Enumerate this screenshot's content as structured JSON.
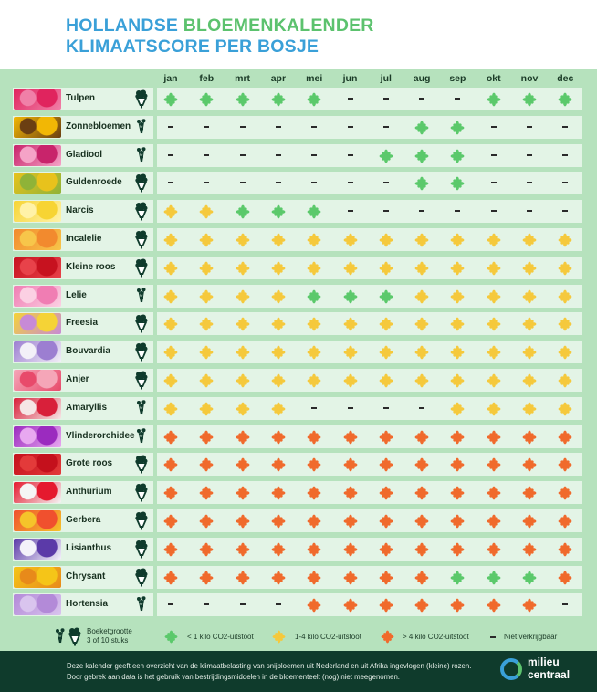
{
  "title": {
    "line1_a": "HOLLANDSE ",
    "line1_b": "BLOEMENKALENDER",
    "line2": "KLIMAATSCORE PER BOSJE"
  },
  "months": [
    "jan",
    "feb",
    "mrt",
    "apr",
    "mei",
    "jun",
    "jul",
    "aug",
    "sep",
    "okt",
    "nov",
    "dec"
  ],
  "colors": {
    "green": "#5bc96b",
    "yellow": "#f5c93c",
    "orange": "#f06a2c",
    "background": "#b6e2bd",
    "cell": "#e3f4e6",
    "footer": "#0f3b2c"
  },
  "flowers": [
    {
      "name": "Tulpen",
      "size": "large",
      "img": [
        "#e0245e",
        "#f080a8"
      ],
      "scores": [
        "g",
        "g",
        "g",
        "g",
        "g",
        "-",
        "-",
        "-",
        "-",
        "g",
        "g",
        "g"
      ]
    },
    {
      "name": "Zonnebloemen",
      "size": "small",
      "img": [
        "#f2b705",
        "#6b3f12"
      ],
      "scores": [
        "-",
        "-",
        "-",
        "-",
        "-",
        "-",
        "-",
        "g",
        "g",
        "-",
        "-",
        "-"
      ]
    },
    {
      "name": "Gladiool",
      "size": "small",
      "img": [
        "#c8246b",
        "#f5a3c7"
      ],
      "scores": [
        "-",
        "-",
        "-",
        "-",
        "-",
        "-",
        "g",
        "g",
        "g",
        "-",
        "-",
        "-"
      ]
    },
    {
      "name": "Guldenroede",
      "size": "large",
      "img": [
        "#e8c21c",
        "#8fb338"
      ],
      "scores": [
        "-",
        "-",
        "-",
        "-",
        "-",
        "-",
        "-",
        "g",
        "g",
        "-",
        "-",
        "-"
      ]
    },
    {
      "name": "Narcis",
      "size": "large",
      "img": [
        "#f7d433",
        "#fff2a8"
      ],
      "scores": [
        "y",
        "y",
        "g",
        "g",
        "g",
        "-",
        "-",
        "-",
        "-",
        "-",
        "-",
        "-"
      ]
    },
    {
      "name": "Incalelie",
      "size": "large",
      "img": [
        "#f28a2e",
        "#f7c64a"
      ],
      "scores": [
        "y",
        "y",
        "y",
        "y",
        "y",
        "y",
        "y",
        "y",
        "y",
        "y",
        "y",
        "y"
      ]
    },
    {
      "name": "Kleine roos",
      "size": "large",
      "img": [
        "#c7121f",
        "#e8424a"
      ],
      "scores": [
        "y",
        "y",
        "y",
        "y",
        "y",
        "y",
        "y",
        "y",
        "y",
        "y",
        "y",
        "y"
      ]
    },
    {
      "name": "Lelie",
      "size": "small",
      "img": [
        "#f07db3",
        "#fbd0e3"
      ],
      "scores": [
        "y",
        "y",
        "y",
        "y",
        "g",
        "g",
        "g",
        "y",
        "y",
        "y",
        "y",
        "y"
      ]
    },
    {
      "name": "Freesia",
      "size": "large",
      "img": [
        "#f5d336",
        "#c78ad6"
      ],
      "scores": [
        "y",
        "y",
        "y",
        "y",
        "y",
        "y",
        "y",
        "y",
        "y",
        "y",
        "y",
        "y"
      ]
    },
    {
      "name": "Bouvardia",
      "size": "large",
      "img": [
        "#9c7ed1",
        "#f3f0f8"
      ],
      "scores": [
        "y",
        "y",
        "y",
        "y",
        "y",
        "y",
        "y",
        "y",
        "y",
        "y",
        "y",
        "y"
      ]
    },
    {
      "name": "Anjer",
      "size": "large",
      "img": [
        "#f5a6b8",
        "#e84a6b"
      ],
      "scores": [
        "y",
        "y",
        "y",
        "y",
        "y",
        "y",
        "y",
        "y",
        "y",
        "y",
        "y",
        "y"
      ]
    },
    {
      "name": "Amaryllis",
      "size": "small",
      "img": [
        "#d8203a",
        "#f5e6e6"
      ],
      "scores": [
        "y",
        "y",
        "y",
        "y",
        "-",
        "-",
        "-",
        "-",
        "y",
        "y",
        "y",
        "y"
      ]
    },
    {
      "name": "Vlinderorchidee",
      "size": "small",
      "img": [
        "#9b2bbf",
        "#e8a8f0"
      ],
      "scores": [
        "o",
        "o",
        "o",
        "o",
        "o",
        "o",
        "o",
        "o",
        "o",
        "o",
        "o",
        "o"
      ]
    },
    {
      "name": "Grote roos",
      "size": "large",
      "img": [
        "#c4101c",
        "#e33a3a"
      ],
      "scores": [
        "o",
        "o",
        "o",
        "o",
        "o",
        "o",
        "o",
        "o",
        "o",
        "o",
        "o",
        "o"
      ]
    },
    {
      "name": "Anthurium",
      "size": "large",
      "img": [
        "#e5192e",
        "#f5f5f5"
      ],
      "scores": [
        "o",
        "o",
        "o",
        "o",
        "o",
        "o",
        "o",
        "o",
        "o",
        "o",
        "o",
        "o"
      ]
    },
    {
      "name": "Gerbera",
      "size": "large",
      "img": [
        "#f0502e",
        "#f5c42a"
      ],
      "scores": [
        "o",
        "o",
        "o",
        "o",
        "o",
        "o",
        "o",
        "o",
        "o",
        "o",
        "o",
        "o"
      ]
    },
    {
      "name": "Lisianthus",
      "size": "large",
      "img": [
        "#5b3aa8",
        "#f4f2fa"
      ],
      "scores": [
        "o",
        "o",
        "o",
        "o",
        "o",
        "o",
        "o",
        "o",
        "o",
        "o",
        "o",
        "o"
      ]
    },
    {
      "name": "Chrysant",
      "size": "large",
      "img": [
        "#f5c518",
        "#e88a1a"
      ],
      "scores": [
        "o",
        "o",
        "o",
        "o",
        "o",
        "o",
        "o",
        "o",
        "g",
        "g",
        "g",
        "o"
      ]
    },
    {
      "name": "Hortensia",
      "size": "small",
      "img": [
        "#b38ad8",
        "#d9c4ee"
      ],
      "scores": [
        "-",
        "-",
        "-",
        "-",
        "o",
        "o",
        "o",
        "o",
        "o",
        "o",
        "o",
        "-"
      ]
    }
  ],
  "legend": {
    "bouquet_label_1": "Boeketgrootte",
    "bouquet_label_2": "3 of 10 stuks",
    "green_label": "< 1 kilo CO2-uitstoot",
    "yellow_label": "1-4 kilo CO2-uitstoot",
    "orange_label": "> 4 kilo CO2-uitstoot",
    "dash_label": "Niet verkrijgbaar"
  },
  "footer": {
    "line1": "Deze kalender geeft een overzicht van de klimaatbelasting van snijbloemen uit Nederland en uit Afrika ingevlogen (kleine) rozen.",
    "line2": "Door gebrek aan data is het gebruik van bestrijdingsmiddelen in de bloementeelt (nog) niet meegenomen.",
    "logo_line1": "milieu",
    "logo_line2": "centraal"
  }
}
